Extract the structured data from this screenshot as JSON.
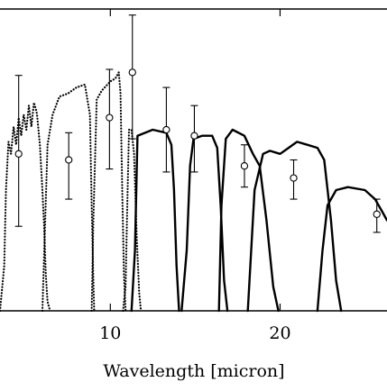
{
  "chart_data": {
    "type": "line",
    "xlabel": "Wavelength [micron]",
    "ylabel": "",
    "xlim": [
      3.5,
      26.3
    ],
    "ylim": [
      0,
      1.0
    ],
    "x_ticks": [
      {
        "value": 10,
        "label": "10"
      },
      {
        "value": 20,
        "label": "20"
      }
    ],
    "grid": false,
    "series": [
      {
        "style": "dotted",
        "x": [
          3.5,
          3.75,
          3.85,
          4.0,
          4.15,
          4.3,
          4.45,
          4.6,
          4.75,
          4.9,
          5.05,
          5.2,
          5.35,
          5.5,
          5.65,
          5.7,
          5.85,
          6.0,
          6.1,
          6.2,
          6.3,
          6.45
        ],
        "y": [
          0.0,
          0.15,
          0.4,
          0.56,
          0.52,
          0.61,
          0.55,
          0.64,
          0.58,
          0.65,
          0.6,
          0.68,
          0.61,
          0.69,
          0.66,
          0.64,
          0.55,
          0.4,
          0.28,
          0.12,
          0.03,
          0.0
        ]
      },
      {
        "style": "dotted",
        "x": [
          6.0,
          6.3,
          6.6,
          7.0,
          7.5,
          8.0,
          8.5,
          8.8,
          8.9,
          9.0,
          9.05
        ],
        "y": [
          0.0,
          0.55,
          0.65,
          0.71,
          0.72,
          0.74,
          0.75,
          0.65,
          0.35,
          0.1,
          0.0
        ]
      },
      {
        "style": "dotted",
        "x": [
          8.9,
          9.0,
          9.2,
          9.5,
          10.0,
          10.3,
          10.5,
          10.6,
          10.7,
          10.8,
          10.9
        ],
        "y": [
          0.0,
          0.3,
          0.7,
          0.73,
          0.76,
          0.77,
          0.79,
          0.72,
          0.4,
          0.12,
          0.0
        ]
      },
      {
        "style": "dotted",
        "x": [
          10.75,
          10.9,
          11.0,
          11.1,
          11.25,
          11.4,
          11.55,
          11.7,
          11.8
        ],
        "y": [
          0.0,
          0.08,
          0.35,
          0.6,
          0.6,
          0.52,
          0.25,
          0.06,
          0.0
        ]
      },
      {
        "style": "solid",
        "x": [
          11.25,
          11.45,
          11.6,
          12.5,
          13.3,
          13.6,
          13.75,
          13.9,
          14.05
        ],
        "y": [
          0.0,
          0.2,
          0.58,
          0.6,
          0.59,
          0.55,
          0.4,
          0.15,
          0.0
        ]
      },
      {
        "style": "solid",
        "x": [
          14.2,
          14.5,
          14.7,
          14.9,
          15.4,
          16.0,
          16.3,
          16.5,
          16.7,
          16.9
        ],
        "y": [
          0.0,
          0.2,
          0.48,
          0.57,
          0.58,
          0.58,
          0.54,
          0.35,
          0.1,
          0.0
        ]
      },
      {
        "style": "solid",
        "x": [
          16.4,
          16.55,
          16.8,
          17.2,
          17.9,
          18.4,
          18.8,
          19.2,
          19.6,
          19.9
        ],
        "y": [
          0.0,
          0.35,
          0.57,
          0.6,
          0.58,
          0.52,
          0.48,
          0.3,
          0.08,
          0.0
        ]
      },
      {
        "style": "solid",
        "x": [
          18.1,
          18.5,
          19.0,
          19.4,
          20.0,
          20.5,
          21.0,
          21.6,
          22.2,
          22.6,
          23.0,
          23.3,
          23.6
        ],
        "y": [
          0.0,
          0.4,
          0.52,
          0.53,
          0.52,
          0.54,
          0.56,
          0.55,
          0.54,
          0.5,
          0.3,
          0.1,
          0.0
        ]
      },
      {
        "style": "solid",
        "x": [
          22.2,
          22.5,
          22.8,
          23.3,
          24.0,
          25.0,
          25.6,
          26.0,
          26.3
        ],
        "y": [
          0.0,
          0.2,
          0.35,
          0.4,
          0.41,
          0.4,
          0.37,
          0.33,
          0.3
        ]
      }
    ],
    "points": [
      {
        "x": 4.6,
        "y": 0.52,
        "yerr_low": 0.28,
        "yerr_high": 0.78
      },
      {
        "x": 7.55,
        "y": 0.5,
        "yerr_low": 0.37,
        "yerr_high": 0.59
      },
      {
        "x": 9.95,
        "y": 0.64,
        "yerr_low": 0.47,
        "yerr_high": 0.8
      },
      {
        "x": 11.3,
        "y": 0.79,
        "yerr_low": 0.57,
        "yerr_high": 0.98
      },
      {
        "x": 13.3,
        "y": 0.6,
        "yerr_low": 0.46,
        "yerr_high": 0.74
      },
      {
        "x": 14.95,
        "y": 0.58,
        "yerr_low": 0.46,
        "yerr_high": 0.68
      },
      {
        "x": 17.9,
        "y": 0.48,
        "yerr_low": 0.41,
        "yerr_high": 0.55
      },
      {
        "x": 20.8,
        "y": 0.44,
        "yerr_low": 0.37,
        "yerr_high": 0.5
      },
      {
        "x": 25.7,
        "y": 0.32,
        "yerr_low": 0.26,
        "yerr_high": 0.37
      }
    ]
  }
}
